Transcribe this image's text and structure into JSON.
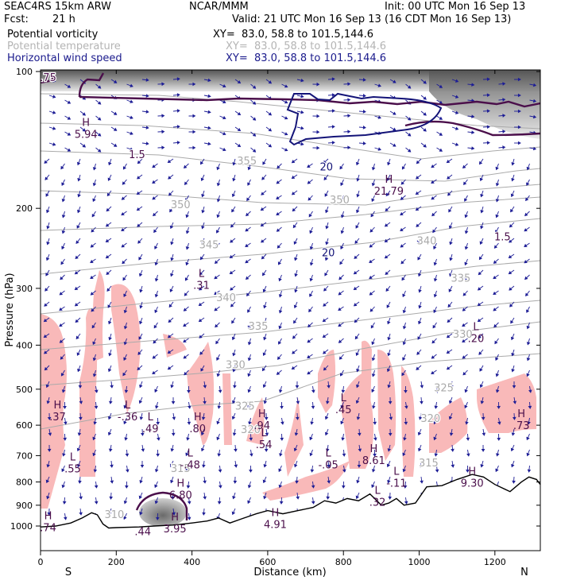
{
  "header": {
    "model": "SEAC4RS 15km ARW",
    "center": "NCAR/MMM",
    "init": "Init: 00 UTC Mon 16 Sep 13",
    "fcst_label": "Fcst:",
    "fcst_value": "21 h",
    "valid": "Valid: 21 UTC Mon 16 Sep 13 (16 CDT Mon 16 Sep 13)"
  },
  "fields": [
    {
      "name": "Potential vorticity",
      "xy": "XY=  83.0, 58.8 to 101.5,144.6",
      "color": "#000000"
    },
    {
      "name": "Potential temperature",
      "xy": "XY=  83.0, 58.8 to 101.5,144.6",
      "color": "#b4b4b4"
    },
    {
      "name": "Horizontal wind speed",
      "xy": "XY=  83.0, 58.8 to 101.5,144.6",
      "color": "#1a1a8c"
    }
  ],
  "colors": {
    "pv_contour": "#4b0f4b",
    "wind_contour": "#141478",
    "theta_contour": "#aaaaaa",
    "vectors": "#1e1e96",
    "humidity_fill": "#f9b9b9",
    "terrain": "#000000"
  },
  "chart_data": {
    "type": "cross-section",
    "xlabel": "Distance (km)",
    "ylabel": "Pressure (hPa)",
    "xlim": [
      0,
      1320
    ],
    "ylim": [
      1050,
      100
    ],
    "y_scale": "log",
    "xticks": [
      0,
      200,
      400,
      600,
      800,
      1000,
      1200
    ],
    "yticks": [
      100,
      200,
      300,
      400,
      500,
      600,
      700,
      800,
      900,
      1000
    ],
    "x_end_labels": {
      "left": "S",
      "right": "N"
    },
    "terrain": [
      [
        0,
        1005
      ],
      [
        40,
        1000
      ],
      [
        80,
        985
      ],
      [
        110,
        960
      ],
      [
        135,
        935
      ],
      [
        150,
        945
      ],
      [
        165,
        990
      ],
      [
        180,
        1010
      ],
      [
        200,
        1008
      ],
      [
        260,
        1005
      ],
      [
        300,
        1000
      ],
      [
        350,
        995
      ],
      [
        400,
        985
      ],
      [
        440,
        975
      ],
      [
        470,
        960
      ],
      [
        500,
        985
      ],
      [
        530,
        965
      ],
      [
        570,
        940
      ],
      [
        600,
        925
      ],
      [
        640,
        940
      ],
      [
        680,
        925
      ],
      [
        720,
        910
      ],
      [
        750,
        880
      ],
      [
        780,
        890
      ],
      [
        810,
        870
      ],
      [
        840,
        880
      ],
      [
        870,
        850
      ],
      [
        900,
        900
      ],
      [
        920,
        890
      ],
      [
        940,
        870
      ],
      [
        960,
        900
      ],
      [
        990,
        890
      ],
      [
        1020,
        820
      ],
      [
        1060,
        815
      ],
      [
        1100,
        790
      ],
      [
        1140,
        770
      ],
      [
        1170,
        780
      ],
      [
        1200,
        810
      ],
      [
        1240,
        840
      ],
      [
        1270,
        800
      ],
      [
        1290,
        780
      ],
      [
        1310,
        790
      ],
      [
        1320,
        810
      ]
    ],
    "theta_labels": [
      {
        "text": "355",
        "x": 545,
        "p": 160
      },
      {
        "text": "350",
        "x": 370,
        "p": 200
      },
      {
        "text": "350",
        "x": 790,
        "p": 195
      },
      {
        "text": "345",
        "x": 445,
        "p": 245
      },
      {
        "text": "340",
        "x": 1020,
        "p": 240
      },
      {
        "text": "340",
        "x": 490,
        "p": 320
      },
      {
        "text": "335",
        "x": 1110,
        "p": 290
      },
      {
        "text": "335",
        "x": 575,
        "p": 370
      },
      {
        "text": "330",
        "x": 1115,
        "p": 385
      },
      {
        "text": "330",
        "x": 515,
        "p": 450
      },
      {
        "text": "325",
        "x": 1065,
        "p": 505
      },
      {
        "text": "325",
        "x": 540,
        "p": 555
      },
      {
        "text": "320",
        "x": 1030,
        "p": 590
      },
      {
        "text": "320",
        "x": 555,
        "p": 625
      },
      {
        "text": "315",
        "x": 1025,
        "p": 740
      },
      {
        "text": "315",
        "x": 370,
        "p": 760
      },
      {
        "text": "310",
        "x": 195,
        "p": 960
      }
    ],
    "extrema_labels": [
      {
        "mark": "H",
        "value": "5.94",
        "x": 120,
        "p": 135
      },
      {
        "mark": "H",
        "value": "21.79",
        "x": 920,
        "p": 180
      },
      {
        "mark": "L",
        "value": ".31",
        "x": 425,
        "p": 290
      },
      {
        "mark": "L",
        "value": ".20",
        "x": 1150,
        "p": 380
      },
      {
        "mark": "H",
        "value": ".37",
        "x": 45,
        "p": 565
      },
      {
        "mark": "L",
        "value": "-.36",
        "x": 230,
        "p": 565
      },
      {
        "mark": "L",
        "value": ".49",
        "x": 290,
        "p": 600
      },
      {
        "mark": "H",
        "value": ".80",
        "x": 415,
        "p": 600
      },
      {
        "mark": "H",
        "value": ".94",
        "x": 585,
        "p": 590
      },
      {
        "mark": "L",
        "value": ".45",
        "x": 800,
        "p": 545
      },
      {
        "mark": "L",
        "value": ".54",
        "x": 590,
        "p": 650
      },
      {
        "mark": "H",
        "value": ".73",
        "x": 1270,
        "p": 590
      },
      {
        "mark": "L",
        "value": "-.48",
        "x": 395,
        "p": 720
      },
      {
        "mark": "L",
        "value": ".55",
        "x": 85,
        "p": 735
      },
      {
        "mark": "L",
        "value": "-.05",
        "x": 760,
        "p": 720
      },
      {
        "mark": "H",
        "value": "8.61",
        "x": 880,
        "p": 705
      },
      {
        "mark": "L",
        "value": "-.11",
        "x": 940,
        "p": 790
      },
      {
        "mark": "H",
        "value": "9.30",
        "x": 1140,
        "p": 790
      },
      {
        "mark": "H",
        "value": "6.80",
        "x": 370,
        "p": 840
      },
      {
        "mark": "L",
        "value": ".32",
        "x": 890,
        "p": 870
      },
      {
        "mark": "H",
        "value": "4.91",
        "x": 620,
        "p": 975
      },
      {
        "mark": "H",
        "value": ".74",
        "x": 20,
        "p": 990
      },
      {
        "mark": "H",
        "value": "3.95",
        "x": 355,
        "p": 995
      },
      {
        "mark": "",
        "value": ".44",
        "x": 270,
        "p": 1010
      }
    ],
    "pv_contour_labels": [
      {
        "text": "1.5",
        "x": 255,
        "p": 155
      },
      {
        "text": "1.5",
        "x": 1220,
        "p": 235
      },
      {
        "text": ".75",
        "x": 20,
        "p": 105
      }
    ],
    "wind_contour_labels": [
      {
        "text": "20",
        "x": 755,
        "p": 165
      },
      {
        "text": "20",
        "x": 760,
        "p": 255
      }
    ]
  }
}
